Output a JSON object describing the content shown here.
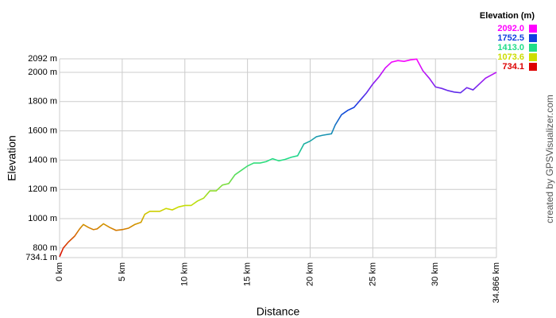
{
  "chart_data": {
    "type": "line",
    "x_label": "Distance",
    "y_label": "Elevation",
    "credit": "created by GPSVisualizer.com",
    "x": [
      0,
      0.3,
      0.7,
      1.2,
      1.6,
      1.9,
      2.3,
      2.7,
      3.0,
      3.5,
      4.0,
      4.5,
      5.0,
      5.5,
      6.0,
      6.5,
      6.8,
      7.2,
      8.0,
      8.5,
      9.0,
      9.5,
      10.0,
      10.5,
      11.0,
      11.5,
      12.0,
      12.5,
      13.0,
      13.5,
      14.0,
      14.5,
      15.0,
      15.5,
      16.0,
      16.5,
      17.0,
      17.5,
      18.0,
      18.5,
      19.0,
      19.5,
      20.0,
      20.5,
      21.0,
      21.7,
      22.0,
      22.5,
      23.0,
      23.5,
      24.0,
      24.5,
      25.0,
      25.5,
      26.0,
      26.5,
      27.0,
      27.5,
      28.0,
      28.5,
      29.0,
      29.5,
      30.0,
      30.5,
      31.0,
      31.5,
      32.0,
      32.5,
      33.0,
      33.5,
      34.0,
      34.866
    ],
    "values": [
      740,
      800,
      840,
      880,
      930,
      960,
      940,
      925,
      930,
      965,
      940,
      920,
      925,
      935,
      960,
      975,
      1030,
      1050,
      1050,
      1070,
      1060,
      1080,
      1090,
      1090,
      1120,
      1140,
      1190,
      1190,
      1230,
      1240,
      1300,
      1330,
      1360,
      1380,
      1380,
      1390,
      1410,
      1395,
      1405,
      1420,
      1430,
      1510,
      1530,
      1560,
      1570,
      1580,
      1640,
      1710,
      1740,
      1760,
      1810,
      1860,
      1920,
      1970,
      2030,
      2070,
      2080,
      2075,
      2085,
      2090,
      2010,
      1960,
      1900,
      1890,
      1875,
      1865,
      1860,
      1895,
      1880,
      1920,
      1960,
      2000
    ],
    "xlim": [
      0,
      34.866
    ],
    "ylim": [
      734.1,
      2092
    ],
    "xticks": [
      {
        "value": 0,
        "label": "0 km"
      },
      {
        "value": 5,
        "label": "5 km"
      },
      {
        "value": 10,
        "label": "10 km"
      },
      {
        "value": 15,
        "label": "15 km"
      },
      {
        "value": 20,
        "label": "20 km"
      },
      {
        "value": 25,
        "label": "25 km"
      },
      {
        "value": 30,
        "label": "30 km"
      },
      {
        "value": 34.866,
        "label": "34.866 km"
      }
    ],
    "yticks": [
      {
        "value": 734.1,
        "label": "734.1 m"
      },
      {
        "value": 800,
        "label": "800 m"
      },
      {
        "value": 1000,
        "label": "1000 m"
      },
      {
        "value": 1200,
        "label": "1200 m"
      },
      {
        "value": 1400,
        "label": "1400 m"
      },
      {
        "value": 1600,
        "label": "1600 m"
      },
      {
        "value": 1800,
        "label": "1800 m"
      },
      {
        "value": 2000,
        "label": "2000 m"
      },
      {
        "value": 2092,
        "label": "2092 m"
      }
    ],
    "grid": true,
    "legend": {
      "title": "Elevation (m)",
      "items": [
        {
          "value": 2092,
          "label": "2092.0",
          "color": "#ff00ff"
        },
        {
          "value": 1752.5,
          "label": "1752.5",
          "color": "#1040e0"
        },
        {
          "value": 1413,
          "label": "1413.0",
          "color": "#20dd88"
        },
        {
          "value": 1073.6,
          "label": "1073.6",
          "color": "#ccdd00"
        },
        {
          "value": 734.1,
          "label": "734.1",
          "color": "#dd0000"
        }
      ]
    }
  }
}
